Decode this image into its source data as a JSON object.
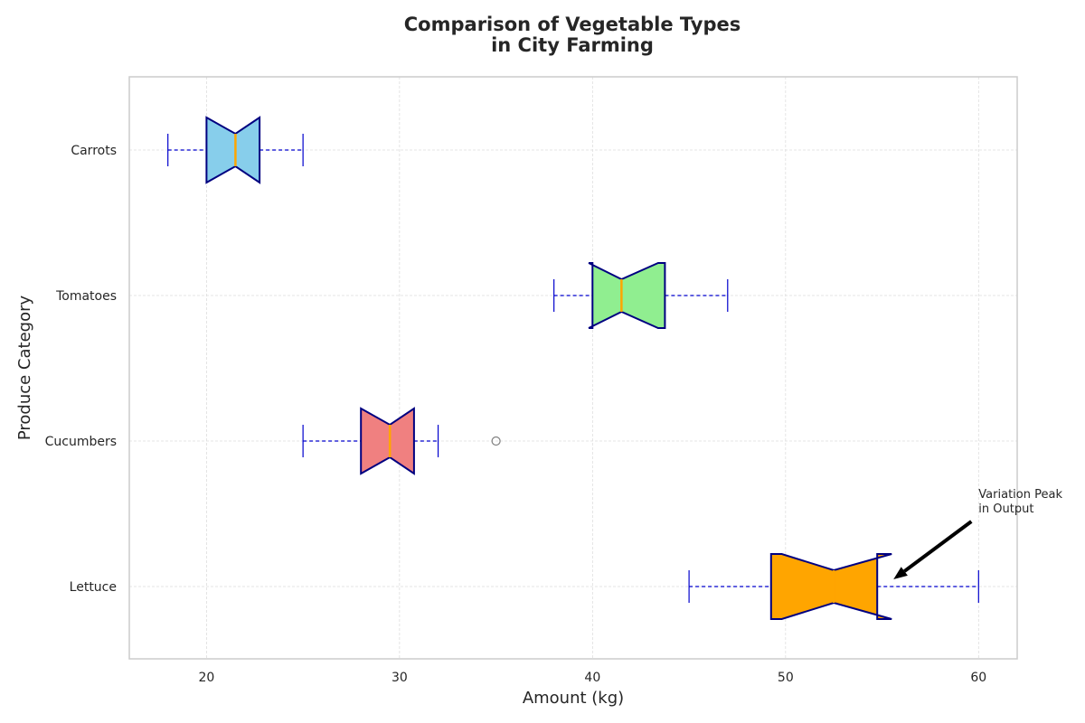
{
  "chart_data": {
    "type": "boxplot",
    "orientation": "horizontal",
    "notched": true,
    "title_lines": [
      "Comparison of Vegetable Types",
      "in City Farming"
    ],
    "xlabel": "Amount (kg)",
    "ylabel": "Produce Category",
    "xlim": [
      16,
      62
    ],
    "xticks": [
      20,
      30,
      40,
      50,
      60
    ],
    "categories_top_to_bottom": [
      "Carrots",
      "Tomatoes",
      "Cucumbers",
      "Lettuce"
    ],
    "grid": true,
    "series": [
      {
        "category": "Carrots",
        "whisker_low": 18,
        "q1": 20,
        "median": 21.5,
        "q3": 22.75,
        "whisker_high": 25,
        "notch_low": 20,
        "notch_high": 22.75,
        "outliers": [],
        "fill": "#87ceeb"
      },
      {
        "category": "Tomatoes",
        "whisker_low": 38,
        "q1": 40,
        "median": 41.5,
        "q3": 43.75,
        "whisker_high": 47,
        "notch_low": 39.8,
        "notch_high": 43.4,
        "outliers": [],
        "fill": "#90ee90"
      },
      {
        "category": "Cucumbers",
        "whisker_low": 25,
        "q1": 28,
        "median": 29.5,
        "q3": 30.75,
        "whisker_high": 32,
        "notch_low": 28,
        "notch_high": 30.75,
        "outliers": [
          35
        ],
        "fill": "#f08080"
      },
      {
        "category": "Lettuce",
        "whisker_low": 45,
        "q1": 49.25,
        "median": 52.5,
        "q3": 54.75,
        "whisker_high": 60,
        "notch_low": 49.8,
        "notch_high": 55.5,
        "outliers": [],
        "fill": "#ffa500"
      }
    ],
    "annotation": {
      "text_lines": [
        "Variation Peak",
        "in Output"
      ],
      "text_at": [
        60,
        "Lettuce"
      ],
      "arrow_to": [
        55.5,
        "Lettuce"
      ]
    },
    "colors": {
      "box_edge": "#000080",
      "whisker": "#0000cd",
      "median": "#ffa500",
      "grid": "#dddddd",
      "frame": "#cccccc",
      "outlier": "#808080"
    }
  }
}
